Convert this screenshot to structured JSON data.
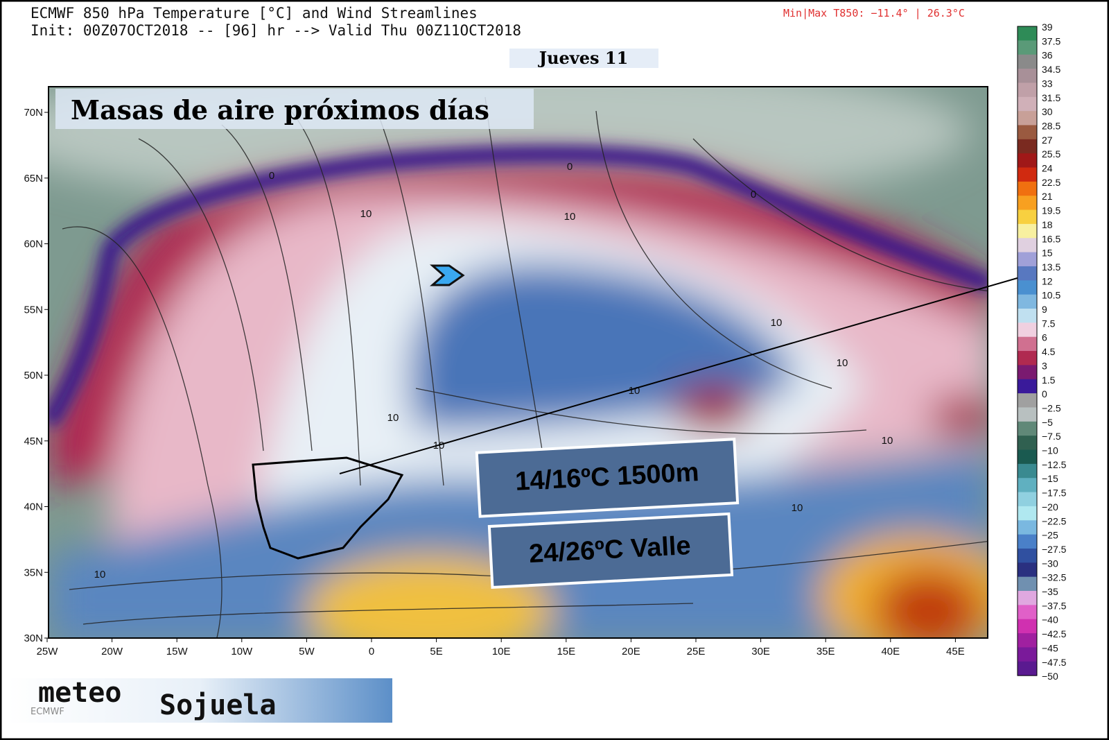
{
  "header": {
    "title": "ECMWF 850 hPa Temperature [°C] and Wind Streamlines",
    "subtitle": "Init: 00Z07OCT2018 -- [96] hr --> Valid Thu 00Z11OCT2018",
    "minmax": "Min|Max T850: −11.4° |  26.3°C",
    "day": "Jueves 11"
  },
  "map": {
    "banner": "Masas de aire próximos días",
    "lat_labels": [
      "70N",
      "65N",
      "60N",
      "55N",
      "50N",
      "45N",
      "40N",
      "35N",
      "30N"
    ],
    "lon_labels": [
      "25W",
      "20W",
      "15W",
      "10W",
      "5W",
      "0",
      "5E",
      "10E",
      "15E",
      "20E",
      "25E",
      "30E",
      "35E",
      "40E",
      "45E"
    ],
    "contour_labels": [
      "0",
      "10",
      "10",
      "0",
      "0",
      "10",
      "10",
      "10",
      "10",
      "10",
      "10",
      "10",
      "10"
    ],
    "callouts": [
      "14/16ºC 1500m",
      "24/26ºC Valle"
    ]
  },
  "colorbar": {
    "labels": [
      "39",
      "37.5",
      "36",
      "34.5",
      "33",
      "31.5",
      "30",
      "28.5",
      "27",
      "25.5",
      "24",
      "22.5",
      "21",
      "19.5",
      "18",
      "16.5",
      "15",
      "13.5",
      "12",
      "10.5",
      "9",
      "7.5",
      "6",
      "4.5",
      "3",
      "1.5",
      "0",
      "−2.5",
      "−5",
      "−7.5",
      "−10",
      "−12.5",
      "−15",
      "−17.5",
      "−20",
      "−22.5",
      "−25",
      "−27.5",
      "−30",
      "−32.5",
      "−35",
      "−37.5",
      "−40",
      "−42.5",
      "−45",
      "−47.5",
      "−50"
    ]
  },
  "logo": {
    "word1": "meteo",
    "word2": "Sojuela",
    "source": "ECMWF"
  }
}
